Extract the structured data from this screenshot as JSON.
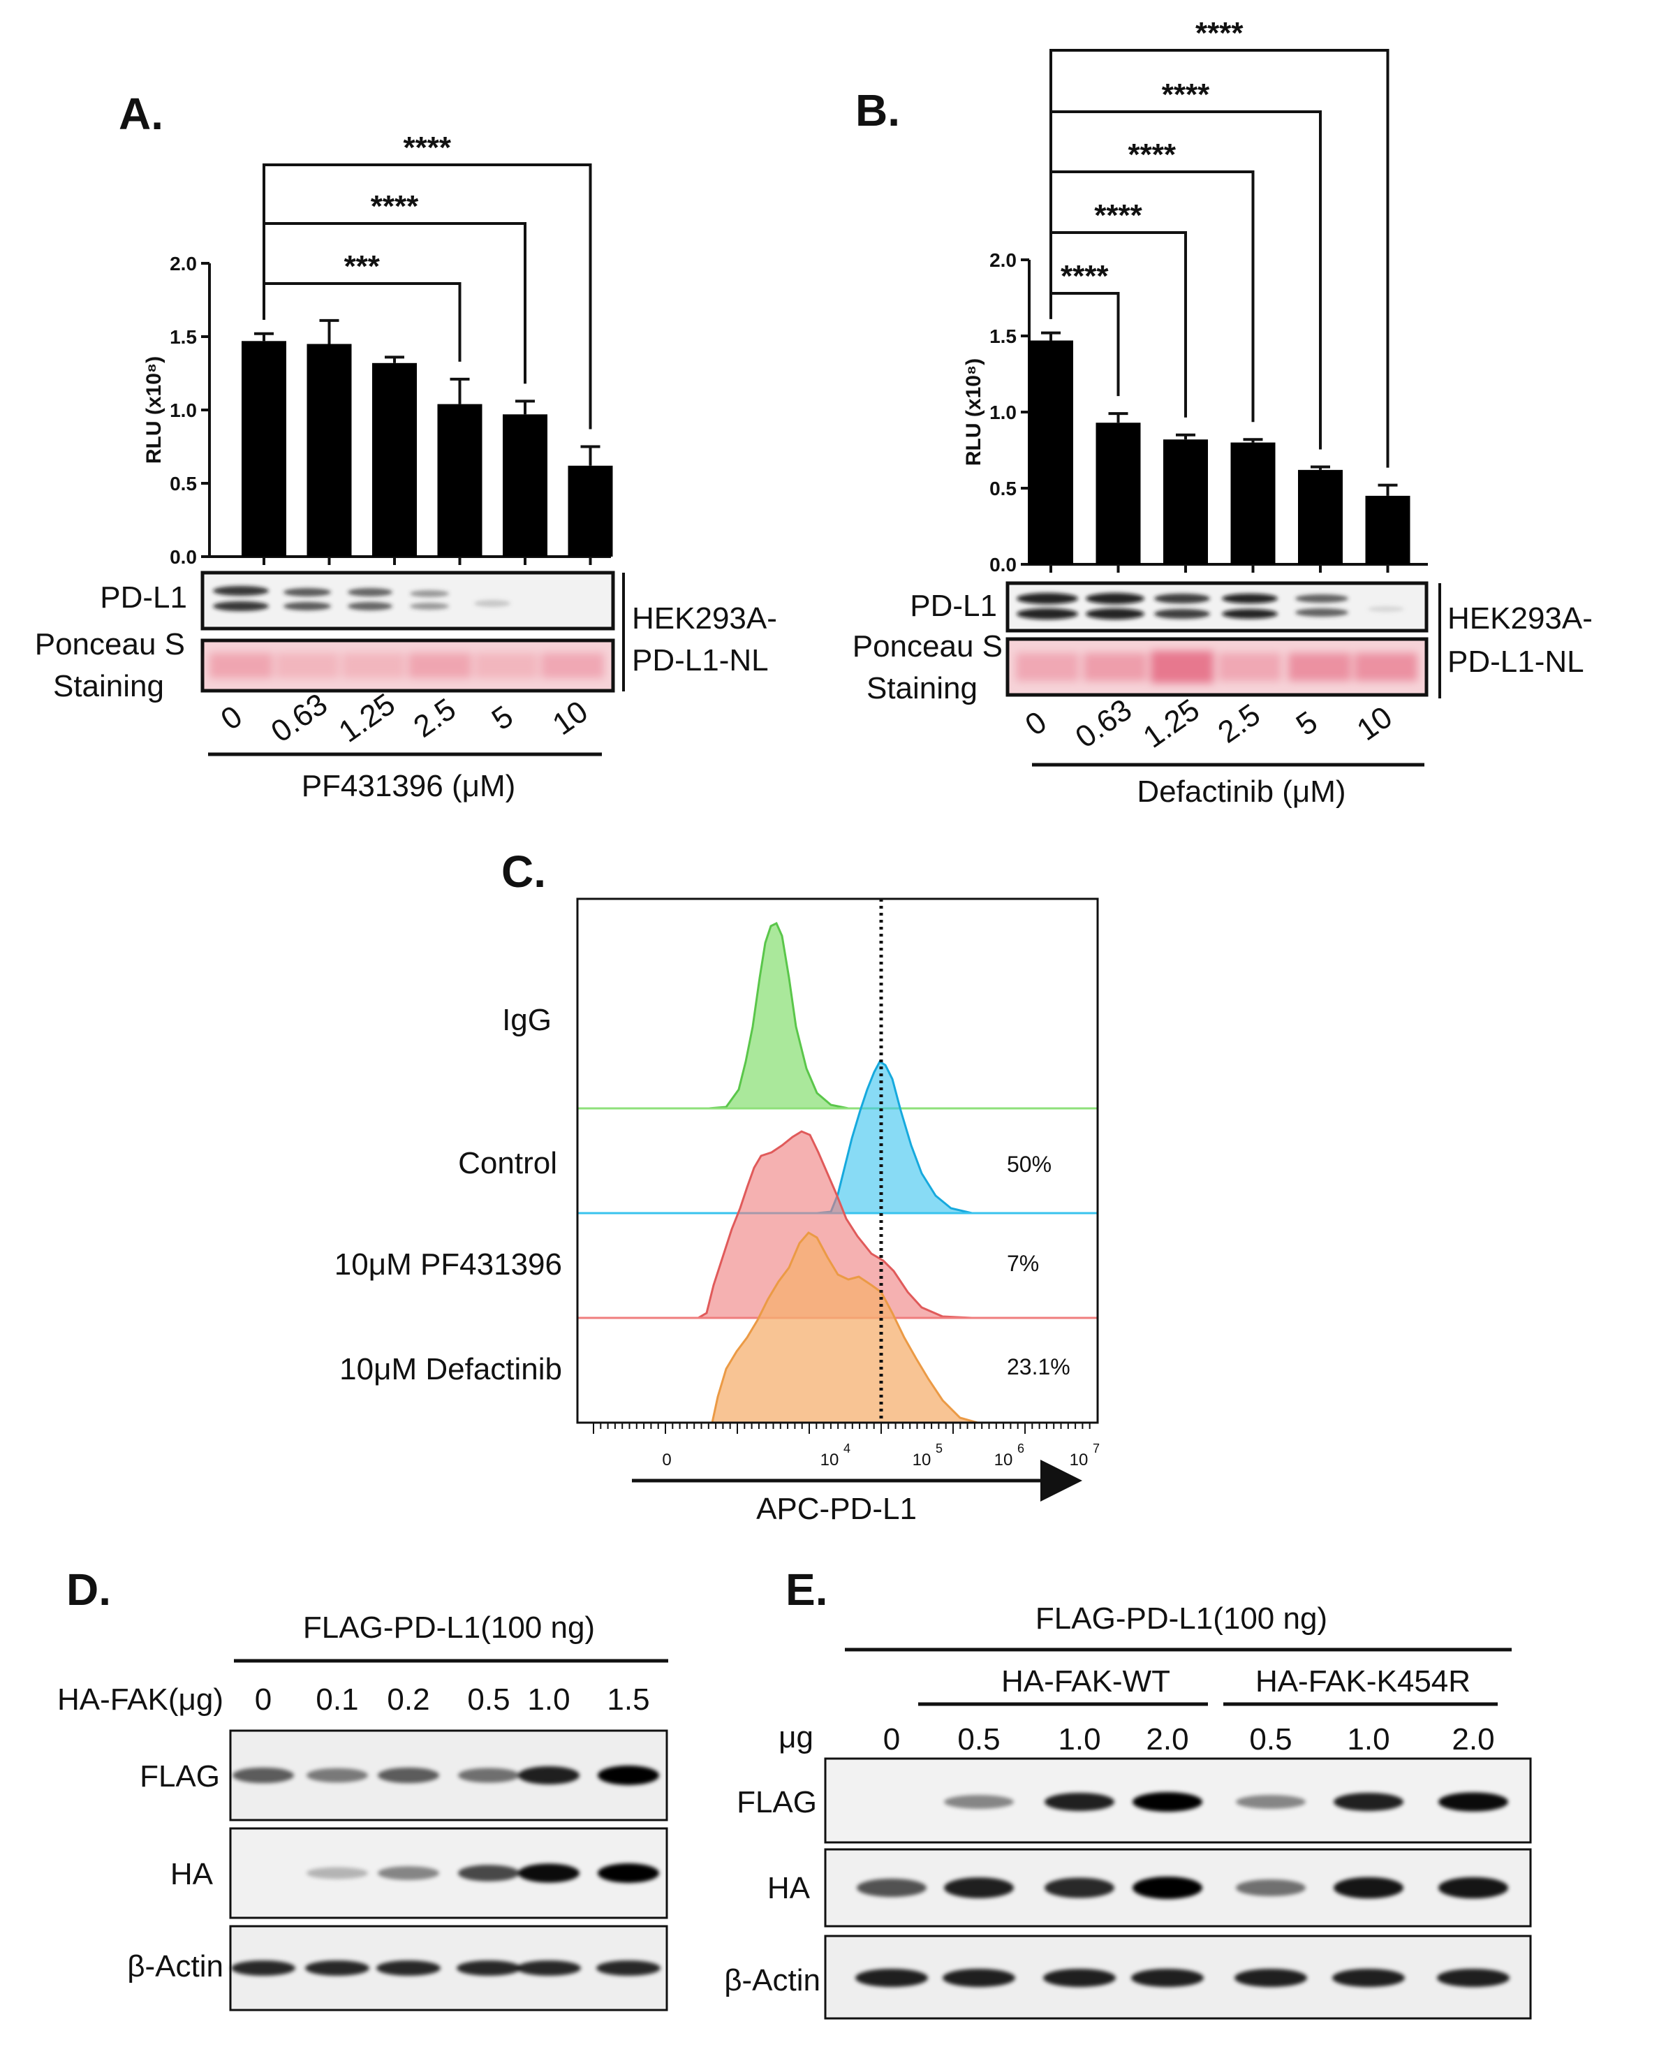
{
  "panels": {
    "A": {
      "letter": "A.",
      "ylabel": "RLU (x10⁸)",
      "yticks": [
        "0.0",
        "0.5",
        "1.0",
        "1.5",
        "2.0"
      ],
      "xticks": [
        "0",
        "0.63",
        "1.25",
        "2.5",
        "5",
        "10"
      ],
      "xlabel": "PF431396 (μM)",
      "blot_labels": [
        "PD-L1",
        "Ponceau S",
        "Staining"
      ],
      "cell_line": [
        "HEK293A-",
        "PD-L1-NL"
      ],
      "sig": [
        "***",
        "****",
        "****"
      ]
    },
    "B": {
      "letter": "B.",
      "ylabel": "RLU (x10⁸)",
      "yticks": [
        "0.0",
        "0.5",
        "1.0",
        "1.5",
        "2.0"
      ],
      "xticks": [
        "0",
        "0.63",
        "1.25",
        "2.5",
        "5",
        "10"
      ],
      "xlabel": "Defactinib (μM)",
      "blot_labels": [
        "PD-L1",
        "Ponceau S",
        "Staining"
      ],
      "cell_line": [
        "HEK293A-",
        "PD-L1-NL"
      ],
      "sig": [
        "****",
        "****",
        "****",
        "****",
        "****"
      ]
    },
    "C": {
      "letter": "C.",
      "rows": [
        "IgG",
        "Control",
        "10μM PF431396",
        "10μM Defactinib"
      ],
      "percents": [
        "50%",
        "7%",
        "23.1%"
      ],
      "xticks": [
        "0",
        "10",
        "10",
        "10",
        "10"
      ],
      "xtick_exps": [
        "",
        "4",
        "5",
        "6",
        "7"
      ],
      "xlabel": "APC-PD-L1"
    },
    "D": {
      "letter": "D.",
      "header": "FLAG-PD-L1(100 ng)",
      "dose_label": "HA-FAK(μg)",
      "doses": [
        "0",
        "0.1",
        "0.2",
        "0.5",
        "1.0",
        "1.5"
      ],
      "rows": [
        "FLAG",
        "HA",
        "β-Actin"
      ]
    },
    "E": {
      "letter": "E.",
      "header": "FLAG-PD-L1(100 ng)",
      "groups": [
        "HA-FAK-WT",
        "HA-FAK-K454R"
      ],
      "dose_label": "μg",
      "doses": [
        "0",
        "0.5",
        "1.0",
        "2.0",
        "0.5",
        "1.0",
        "2.0"
      ],
      "rows": [
        "FLAG",
        "HA",
        "β-Actin"
      ]
    }
  },
  "chart_data": [
    {
      "type": "bar",
      "panel": "A",
      "categories": [
        "0",
        "0.63",
        "1.25",
        "2.5",
        "5",
        "10"
      ],
      "values": [
        1.47,
        1.45,
        1.32,
        1.04,
        0.97,
        0.62
      ],
      "errors": [
        0.05,
        0.16,
        0.04,
        0.17,
        0.09,
        0.13
      ],
      "xlabel": "PF431396 (μM)",
      "ylabel": "RLU (x10⁸)",
      "ylim": [
        0,
        2.0
      ]
    },
    {
      "type": "bar",
      "panel": "B",
      "categories": [
        "0",
        "0.63",
        "1.25",
        "2.5",
        "5",
        "10"
      ],
      "values": [
        1.47,
        0.93,
        0.82,
        0.8,
        0.62,
        0.45
      ],
      "errors": [
        0.05,
        0.06,
        0.03,
        0.02,
        0.02,
        0.07
      ],
      "xlabel": "Defactinib (μM)",
      "ylabel": "RLU (x10⁸)",
      "ylim": [
        0,
        2.0
      ]
    }
  ],
  "colors": {
    "igg": "#8ee07a",
    "control": "#39c3ee",
    "pf431396": "#ef7d7d",
    "defactinib": "#f5b070",
    "ponceau": "#f3b4bd"
  }
}
